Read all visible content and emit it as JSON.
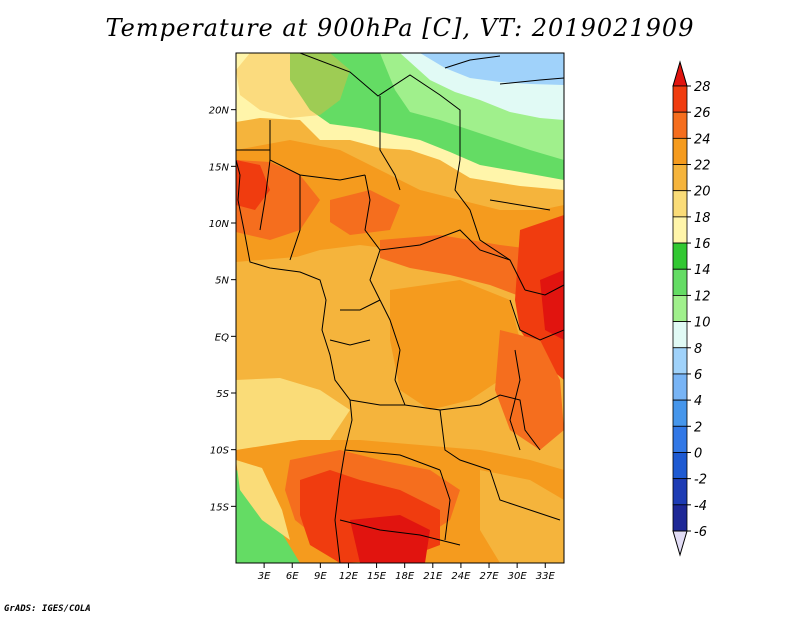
{
  "title": "Temperature at 900hPa [C], VT: 2019021909",
  "credit": "GrADS: IGES/COLA",
  "map": {
    "lon_range": [
      0,
      35
    ],
    "lat_range": [
      -20,
      25
    ],
    "y_ticks": [
      {
        "lat": 20,
        "label": "20N"
      },
      {
        "lat": 15,
        "label": "15N"
      },
      {
        "lat": 10,
        "label": "10N"
      },
      {
        "lat": 5,
        "label": "5N"
      },
      {
        "lat": 0,
        "label": "EQ"
      },
      {
        "lat": -5,
        "label": "5S"
      },
      {
        "lat": -10,
        "label": "10S"
      },
      {
        "lat": -15,
        "label": "15S"
      }
    ],
    "x_ticks": [
      {
        "lon": 3,
        "label": "3E"
      },
      {
        "lon": 6,
        "label": "6E"
      },
      {
        "lon": 9,
        "label": "9E"
      },
      {
        "lon": 12,
        "label": "12E"
      },
      {
        "lon": 15,
        "label": "15E"
      },
      {
        "lon": 18,
        "label": "18E"
      },
      {
        "lon": 21,
        "label": "21E"
      },
      {
        "lon": 24,
        "label": "24E"
      },
      {
        "lon": 27,
        "label": "27E"
      },
      {
        "lon": 30,
        "label": "30E"
      },
      {
        "lon": 33,
        "label": "33E"
      }
    ]
  },
  "colorbar": {
    "levels": [
      "28",
      "26",
      "24",
      "22",
      "20",
      "18",
      "16",
      "14",
      "12",
      "10",
      "8",
      "6",
      "4",
      "2",
      "0",
      "-2",
      "-4",
      "-6"
    ],
    "colors": [
      "#e1140f",
      "#f03c0f",
      "#f56e1e",
      "#f59b1e",
      "#f5b43c",
      "#fadc78",
      "#fff5aa",
      "#32c832",
      "#64dc64",
      "#a0f08c",
      "#e1faf5",
      "#a0d2fa",
      "#78b4f5",
      "#4696eb",
      "#3278e6",
      "#1e5ad2",
      "#1e3cb4",
      "#1e2896",
      "#0f0a5a",
      "#e1dcf5"
    ],
    "top_arrow_color": "#e1140f",
    "bottom_arrow_color": "#e1dcf5"
  }
}
